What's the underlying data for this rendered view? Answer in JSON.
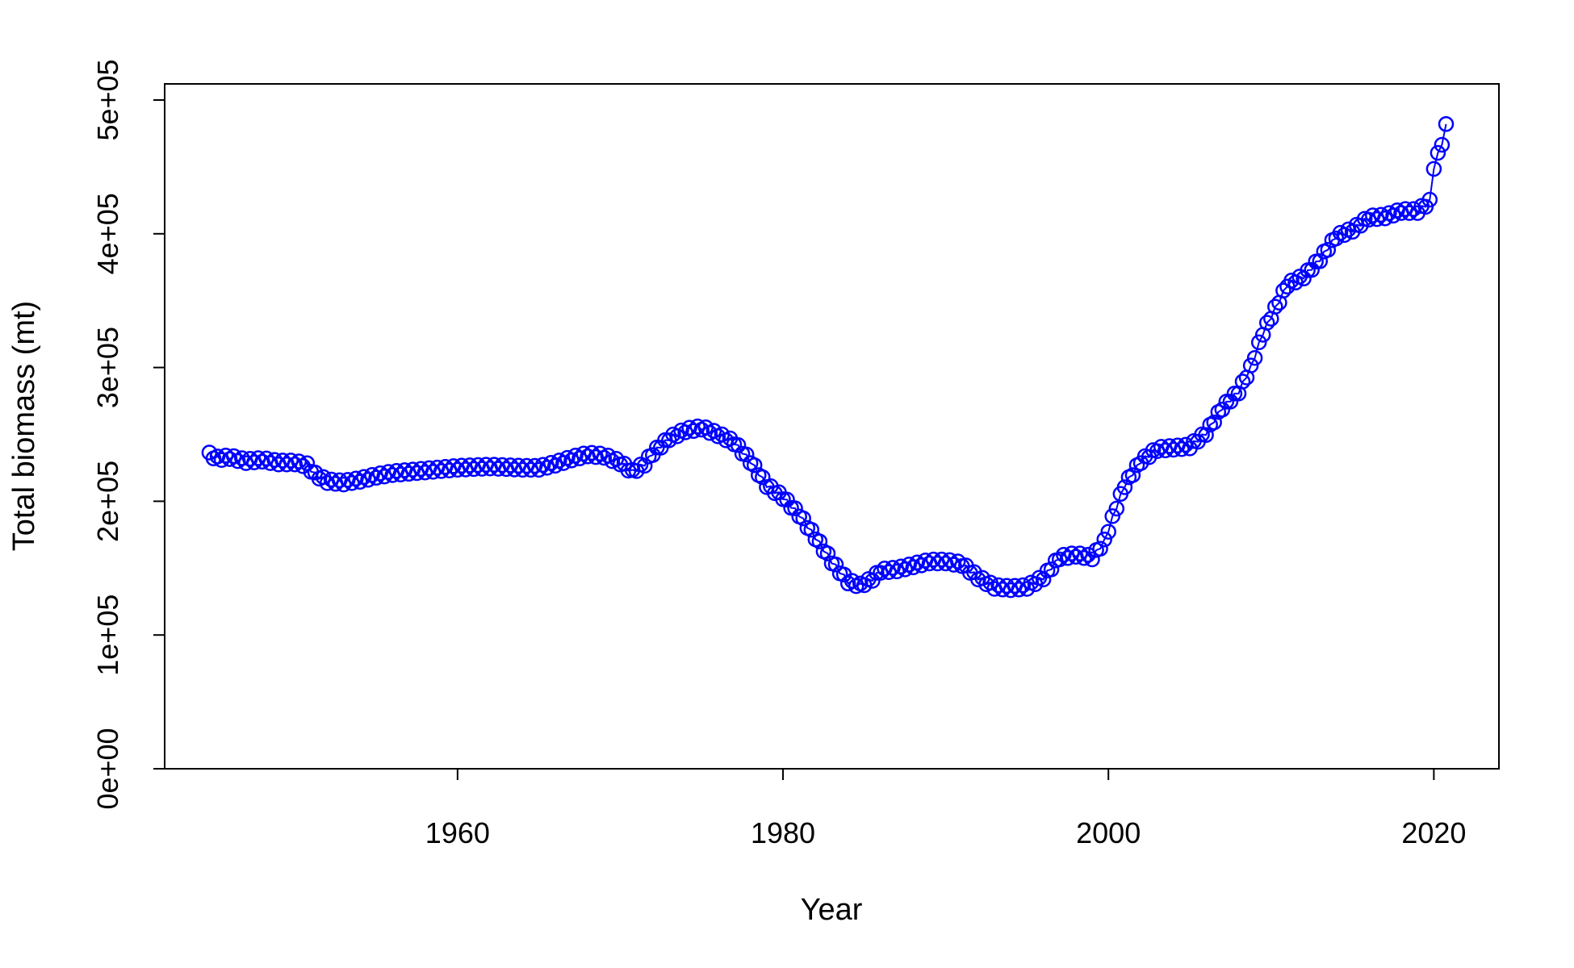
{
  "chart_data": {
    "type": "line",
    "xlabel": "Year",
    "ylabel": "Total biomass (mt)",
    "xlim": [
      1942,
      2024
    ],
    "ylim": [
      0,
      500000
    ],
    "x_ticks": [
      1960,
      1980,
      2000,
      2020
    ],
    "x_tick_labels": [
      "1960",
      "1980",
      "2000",
      "2020"
    ],
    "y_ticks": [
      0,
      100000,
      200000,
      300000,
      400000,
      500000
    ],
    "y_tick_labels": [
      "0e+00",
      "1e+05",
      "2e+05",
      "3e+05",
      "4e+05",
      "5e+05"
    ],
    "grid": false,
    "legend": "none",
    "series_color": "#0000ff",
    "marker": "open-circle",
    "points_per_year": 4,
    "anchors": [
      [
        1944.75,
        235000
      ],
      [
        1945.25,
        232000
      ],
      [
        1946.0,
        233000
      ],
      [
        1947.0,
        230000
      ],
      [
        1948.0,
        231000
      ],
      [
        1949.0,
        229000
      ],
      [
        1950.0,
        229000
      ],
      [
        1950.75,
        227000
      ],
      [
        1951.25,
        220000
      ],
      [
        1952.0,
        215000
      ],
      [
        1953.0,
        214000
      ],
      [
        1954.0,
        216000
      ],
      [
        1955.0,
        219000
      ],
      [
        1956.0,
        221000
      ],
      [
        1957.0,
        222000
      ],
      [
        1958.0,
        223000
      ],
      [
        1960.0,
        225000
      ],
      [
        1962.0,
        226000
      ],
      [
        1964.0,
        225000
      ],
      [
        1965.0,
        225000
      ],
      [
        1966.0,
        228000
      ],
      [
        1967.0,
        232000
      ],
      [
        1968.0,
        235000
      ],
      [
        1969.0,
        234000
      ],
      [
        1970.0,
        229000
      ],
      [
        1970.75,
        222000
      ],
      [
        1971.5,
        228000
      ],
      [
        1972.0,
        236000
      ],
      [
        1973.0,
        247000
      ],
      [
        1974.0,
        253000
      ],
      [
        1975.0,
        255000
      ],
      [
        1976.0,
        250000
      ],
      [
        1977.0,
        244000
      ],
      [
        1978.0,
        230000
      ],
      [
        1979.0,
        212000
      ],
      [
        1980.0,
        203000
      ],
      [
        1981.0,
        190000
      ],
      [
        1982.0,
        173000
      ],
      [
        1983.0,
        155000
      ],
      [
        1984.0,
        140000
      ],
      [
        1984.75,
        137000
      ],
      [
        1985.5,
        142000
      ],
      [
        1986.0,
        148000
      ],
      [
        1987.0,
        149000
      ],
      [
        1988.0,
        152000
      ],
      [
        1989.0,
        155000
      ],
      [
        1990.0,
        155000
      ],
      [
        1991.0,
        153000
      ],
      [
        1992.0,
        143000
      ],
      [
        1993.0,
        136000
      ],
      [
        1994.0,
        135000
      ],
      [
        1995.0,
        136000
      ],
      [
        1996.0,
        143000
      ],
      [
        1997.0,
        158000
      ],
      [
        1998.0,
        160000
      ],
      [
        1999.0,
        158000
      ],
      [
        1999.75,
        170000
      ],
      [
        2000.5,
        196000
      ],
      [
        2001.0,
        212000
      ],
      [
        2002.0,
        230000
      ],
      [
        2003.0,
        239000
      ],
      [
        2004.0,
        240000
      ],
      [
        2005.0,
        241000
      ],
      [
        2006.0,
        251000
      ],
      [
        2007.0,
        270000
      ],
      [
        2008.0,
        282000
      ],
      [
        2008.75,
        300000
      ],
      [
        2009.5,
        326000
      ],
      [
        2010.0,
        338000
      ],
      [
        2011.0,
        362000
      ],
      [
        2012.0,
        368000
      ],
      [
        2013.0,
        381000
      ],
      [
        2014.0,
        398000
      ],
      [
        2015.0,
        403000
      ],
      [
        2016.0,
        412000
      ],
      [
        2017.0,
        413000
      ],
      [
        2018.0,
        417000
      ],
      [
        2019.0,
        417000
      ],
      [
        2019.75,
        424000
      ],
      [
        2020.0,
        450000
      ],
      [
        2020.5,
        468000
      ],
      [
        2020.9,
        488000
      ]
    ]
  }
}
